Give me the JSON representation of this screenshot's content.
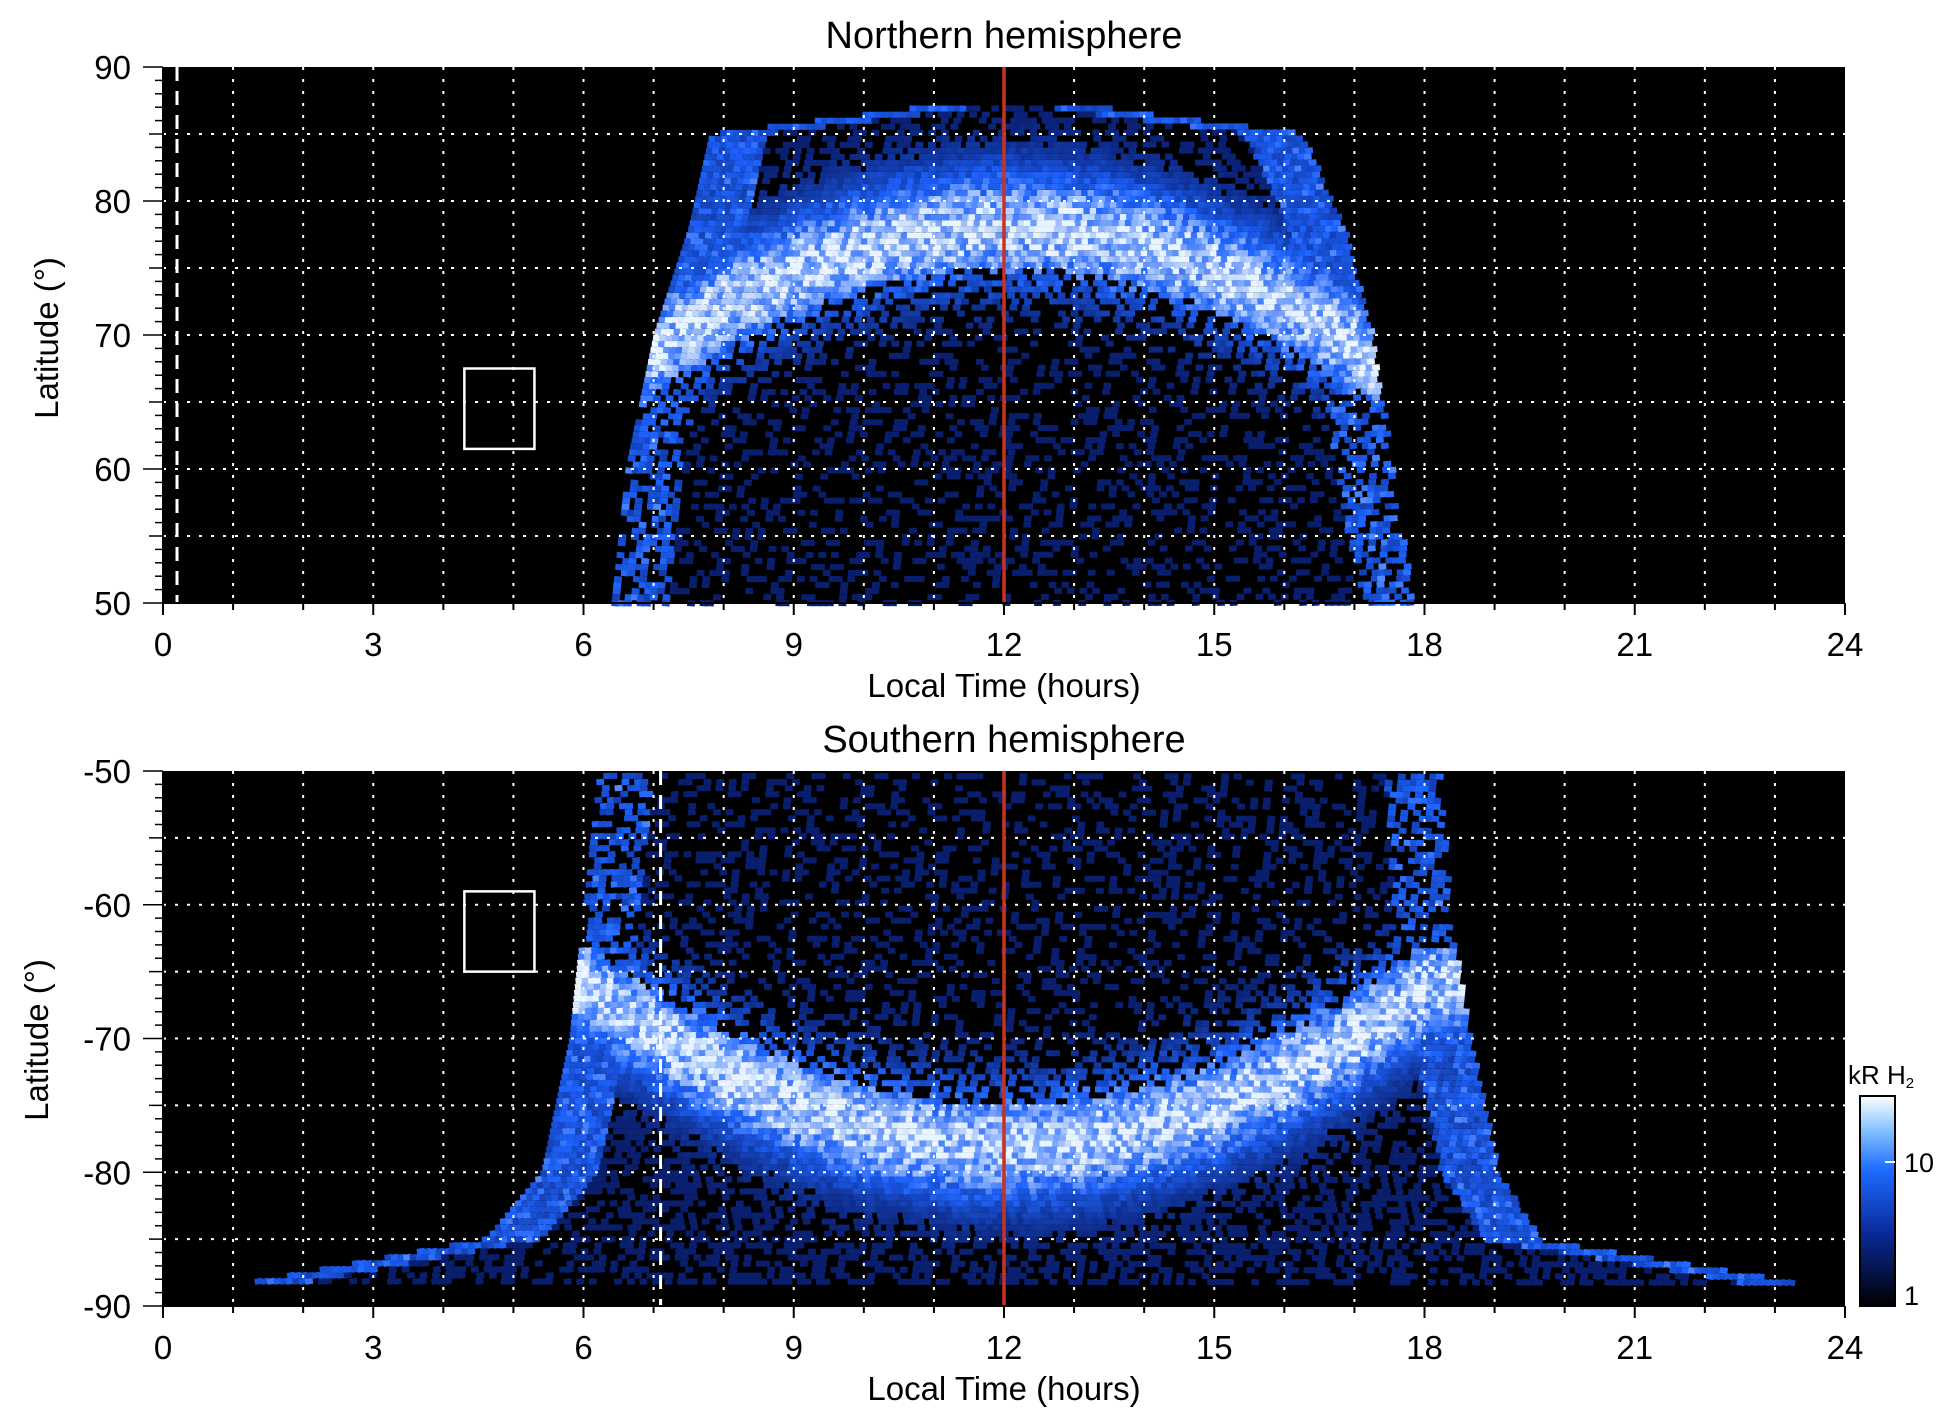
{
  "colors": {
    "background": "#000000",
    "emission_low": "#0a1e6e",
    "emission_mid": "#1e64ff",
    "emission_high": "#e8f4ff",
    "noon_line": "#c8321e",
    "grid": "#ffffff"
  },
  "colorbar": {
    "title": "kR H",
    "title_subscript": "2",
    "tick_labels": [
      "10",
      "1"
    ],
    "scale": "log"
  },
  "chart_data": [
    {
      "type": "heatmap",
      "title": "Northern hemisphere",
      "xlabel": "Local Time (hours)",
      "ylabel": "Latitude (°)",
      "xlim": [
        0,
        24
      ],
      "ylim": [
        50,
        90
      ],
      "x_ticks": [
        0,
        3,
        6,
        9,
        12,
        15,
        18,
        21,
        24
      ],
      "y_ticks": [
        50,
        60,
        70,
        80,
        90
      ],
      "grid": true,
      "noon_line_x": 12,
      "dashed_line_x": 0.2,
      "box": {
        "x": [
          4.3,
          5.3
        ],
        "y": [
          61.5,
          67.5
        ]
      },
      "aurora_band": {
        "lat_at_noon": 78,
        "lat_at_flanks": 65,
        "lt_min": 6.4,
        "lt_max": 17.8
      },
      "emission_extent": [
        {
          "lat": 50,
          "lt_start": 6.4,
          "lt_end": 17.8
        },
        {
          "lat": 60,
          "lt_start": 6.6,
          "lt_end": 17.5
        },
        {
          "lat": 70,
          "lt_start": 7.0,
          "lt_end": 17.2
        },
        {
          "lat": 78,
          "lt_start": 7.5,
          "lt_end": 16.8
        },
        {
          "lat": 85,
          "lt_start": 7.8,
          "lt_end": 16.2
        },
        {
          "lat": 87,
          "lt_start": 10.8,
          "lt_end": 13.3
        }
      ]
    },
    {
      "type": "heatmap",
      "title": "Southern hemisphere",
      "xlabel": "Local Time (hours)",
      "ylabel": "Latitude (°)",
      "xlim": [
        0,
        24
      ],
      "ylim": [
        -90,
        -50
      ],
      "x_ticks": [
        0,
        3,
        6,
        9,
        12,
        15,
        18,
        21,
        24
      ],
      "y_ticks": [
        -90,
        -80,
        -70,
        -60,
        -50
      ],
      "grid": true,
      "noon_line_x": 12,
      "dashed_line_x": 7.1,
      "box": {
        "x": [
          4.3,
          5.3
        ],
        "y": [
          -65,
          -59
        ]
      },
      "aurora_band": {
        "lat_at_noon": -78,
        "lat_at_flanks": -66,
        "lt_min": 5.5,
        "lt_max": 19.5
      },
      "emission_extent": [
        {
          "lat": -50,
          "lt_start": 6.2,
          "lt_end": 18.2
        },
        {
          "lat": -60,
          "lt_start": 6.0,
          "lt_end": 18.3
        },
        {
          "lat": -70,
          "lt_start": 5.8,
          "lt_end": 18.6
        },
        {
          "lat": -80,
          "lt_start": 5.4,
          "lt_end": 19.0
        },
        {
          "lat": -85,
          "lt_start": 4.6,
          "lt_end": 19.6
        },
        {
          "lat": -88.5,
          "lt_start": 1.0,
          "lt_end": 23.6
        }
      ]
    }
  ]
}
